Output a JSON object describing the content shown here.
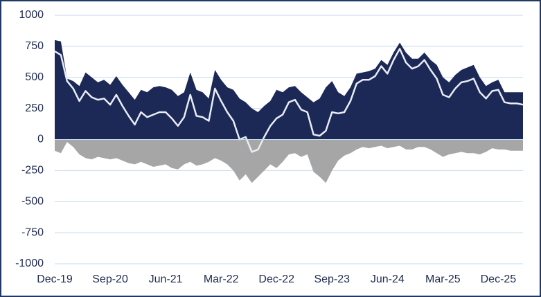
{
  "chart_data": {
    "type": "area",
    "categories": [
      "Dec-19",
      null,
      null,
      null,
      null,
      null,
      null,
      null,
      null,
      "Sep-20",
      null,
      null,
      null,
      null,
      null,
      null,
      null,
      null,
      "Jun-21",
      null,
      null,
      null,
      null,
      null,
      null,
      null,
      null,
      "Mar-22",
      null,
      null,
      null,
      null,
      null,
      null,
      null,
      null,
      "Dec-22",
      null,
      null,
      null,
      null,
      null,
      null,
      null,
      null,
      "Sep-23",
      null,
      null,
      null,
      null,
      null,
      null,
      null,
      null,
      "Jun-24",
      null,
      null,
      null,
      null,
      null,
      null,
      null,
      null,
      "Mar-25",
      null,
      null,
      null,
      null,
      null,
      null,
      null,
      null,
      "Dec-25",
      null,
      null,
      null,
      null
    ],
    "series": [
      {
        "color": "#1c2957",
        "values": [
          800,
          790,
          490,
          470,
          430,
          540,
          500,
          460,
          480,
          440,
          510,
          440,
          380,
          320,
          400,
          380,
          420,
          430,
          420,
          400,
          350,
          380,
          540,
          400,
          380,
          330,
          560,
          480,
          420,
          400,
          330,
          300,
          250,
          220,
          270,
          310,
          400,
          380,
          420,
          430,
          380,
          340,
          300,
          330,
          420,
          470,
          380,
          350,
          420,
          530,
          540,
          550,
          570,
          640,
          600,
          700,
          780,
          700,
          650,
          650,
          700,
          640,
          600,
          500,
          460,
          520,
          560,
          580,
          600,
          500,
          430,
          460,
          480,
          380,
          380,
          380,
          380
        ]
      },
      {
        "color": "#a6a6a6",
        "values": [
          -90,
          -110,
          -20,
          -60,
          -120,
          -150,
          -160,
          -140,
          -150,
          -160,
          -150,
          -170,
          -190,
          -200,
          -180,
          -200,
          -220,
          -210,
          -200,
          -230,
          -240,
          -200,
          -180,
          -210,
          -200,
          -180,
          -150,
          -170,
          -200,
          -250,
          -330,
          -280,
          -350,
          -300,
          -250,
          -200,
          -230,
          -180,
          -120,
          -110,
          -140,
          -120,
          -260,
          -300,
          -350,
          -250,
          -170,
          -130,
          -110,
          -80,
          -60,
          -70,
          -60,
          -50,
          -70,
          -60,
          -50,
          -80,
          -80,
          -60,
          -60,
          -80,
          -110,
          -140,
          -120,
          -110,
          -100,
          -110,
          -110,
          -120,
          -100,
          -70,
          -80,
          -80,
          -90,
          -90,
          -90
        ]
      },
      {
        "color": "#e8ecf4",
        "values": [
          710,
          680,
          470,
          410,
          310,
          390,
          340,
          320,
          330,
          280,
          360,
          270,
          190,
          120,
          220,
          180,
          200,
          220,
          220,
          170,
          110,
          180,
          360,
          190,
          180,
          150,
          410,
          310,
          220,
          150,
          0,
          20,
          -100,
          -80,
          20,
          110,
          170,
          200,
          300,
          320,
          240,
          220,
          40,
          30,
          70,
          220,
          210,
          220,
          310,
          450,
          480,
          480,
          510,
          590,
          530,
          640,
          730,
          620,
          570,
          590,
          640,
          560,
          490,
          360,
          340,
          410,
          460,
          470,
          490,
          380,
          330,
          390,
          400,
          300,
          290,
          290,
          280
        ]
      }
    ],
    "ylim": [
      -1000,
      1000
    ],
    "yticks": [
      1000,
      750,
      500,
      250,
      0,
      -250,
      -500,
      -750,
      -1000
    ],
    "grid": true
  }
}
